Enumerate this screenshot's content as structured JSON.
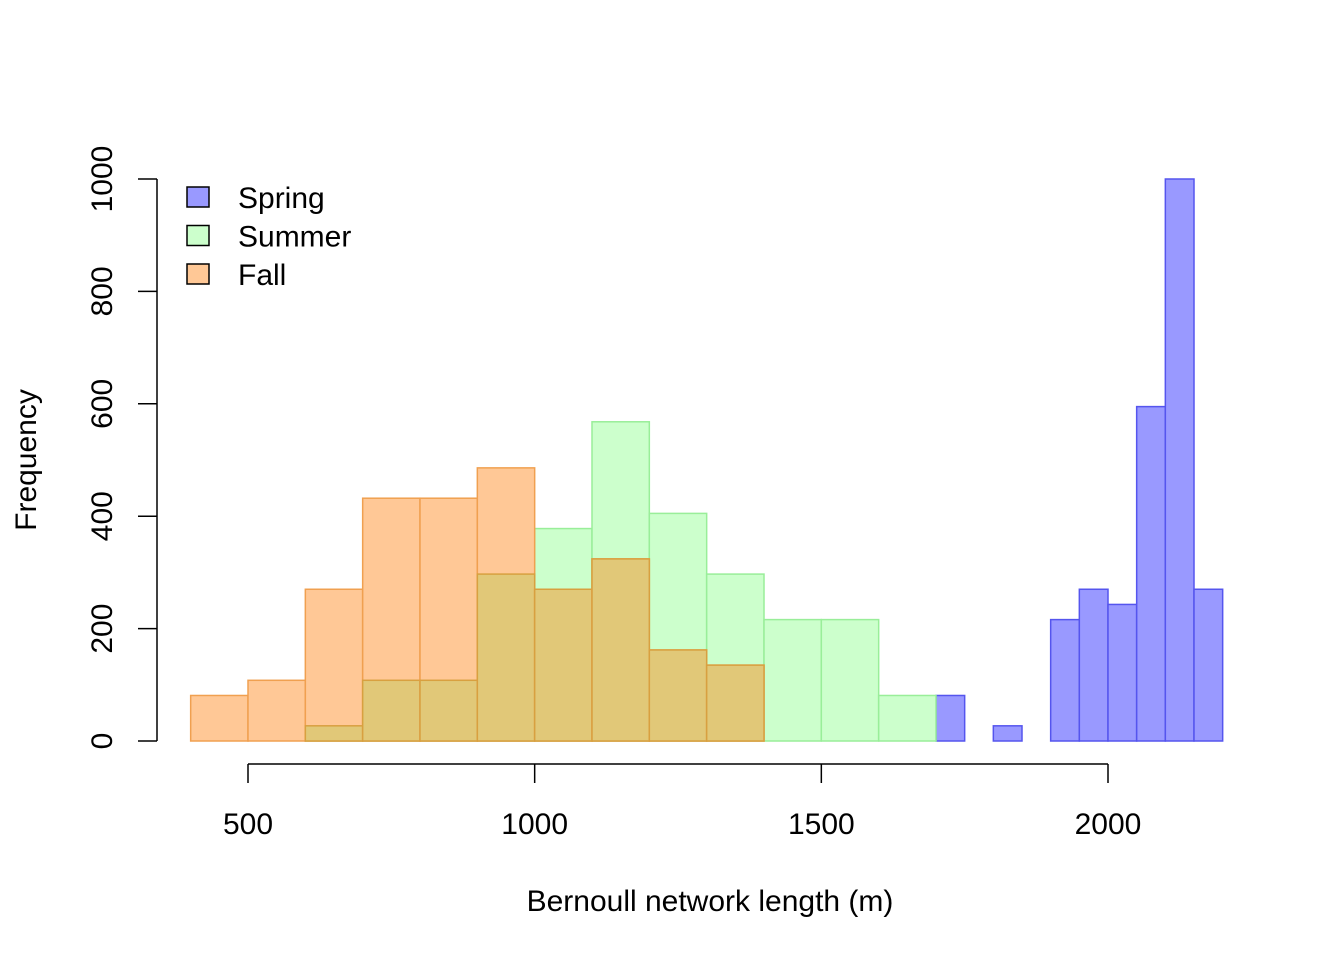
{
  "chart_data": {
    "type": "bar",
    "title": "",
    "xlabel": "Bernoull network length (m)",
    "ylabel": "Frequency",
    "xlim": [
      400,
      2200
    ],
    "ylim": [
      0,
      1000
    ],
    "x_ticks": [
      500,
      1000,
      1500,
      2000
    ],
    "y_ticks": [
      0,
      200,
      400,
      600,
      800,
      1000
    ],
    "grid": false,
    "legend_position": "top-left",
    "series": [
      {
        "name": "Spring",
        "fill": "#9999ff",
        "stroke": "#5555ee",
        "bins": [
          {
            "start": 1700,
            "end": 1750,
            "value": 81
          },
          {
            "start": 1800,
            "end": 1850,
            "value": 27
          },
          {
            "start": 1900,
            "end": 1950,
            "value": 216
          },
          {
            "start": 1950,
            "end": 2000,
            "value": 270
          },
          {
            "start": 2000,
            "end": 2050,
            "value": 243
          },
          {
            "start": 2050,
            "end": 2100,
            "value": 595
          },
          {
            "start": 2100,
            "end": 2150,
            "value": 1000
          },
          {
            "start": 2150,
            "end": 2200,
            "value": 270
          }
        ]
      },
      {
        "name": "Summer",
        "fill": "#ccffcc",
        "stroke": "#99ee99",
        "bins": [
          {
            "start": 600,
            "end": 700,
            "value": 27
          },
          {
            "start": 700,
            "end": 800,
            "value": 108
          },
          {
            "start": 800,
            "end": 900,
            "value": 108
          },
          {
            "start": 900,
            "end": 1000,
            "value": 297
          },
          {
            "start": 1000,
            "end": 1100,
            "value": 378
          },
          {
            "start": 1100,
            "end": 1200,
            "value": 568
          },
          {
            "start": 1200,
            "end": 1300,
            "value": 405
          },
          {
            "start": 1300,
            "end": 1400,
            "value": 297
          },
          {
            "start": 1400,
            "end": 1500,
            "value": 216
          },
          {
            "start": 1500,
            "end": 1600,
            "value": 216
          },
          {
            "start": 1600,
            "end": 1700,
            "value": 81
          }
        ]
      },
      {
        "name": "Fall",
        "fill": "#ffc896",
        "stroke": "#f0a050",
        "bins": [
          {
            "start": 400,
            "end": 500,
            "value": 81
          },
          {
            "start": 500,
            "end": 600,
            "value": 108
          },
          {
            "start": 600,
            "end": 700,
            "value": 270
          },
          {
            "start": 700,
            "end": 800,
            "value": 432
          },
          {
            "start": 800,
            "end": 900,
            "value": 432
          },
          {
            "start": 900,
            "end": 1000,
            "value": 486
          },
          {
            "start": 1000,
            "end": 1100,
            "value": 270
          },
          {
            "start": 1100,
            "end": 1200,
            "value": 324
          },
          {
            "start": 1200,
            "end": 1300,
            "value": 162
          },
          {
            "start": 1300,
            "end": 1400,
            "value": 135
          }
        ]
      }
    ],
    "overlap_fill": "#e1c878",
    "overlap_stroke": "#d8a040"
  }
}
